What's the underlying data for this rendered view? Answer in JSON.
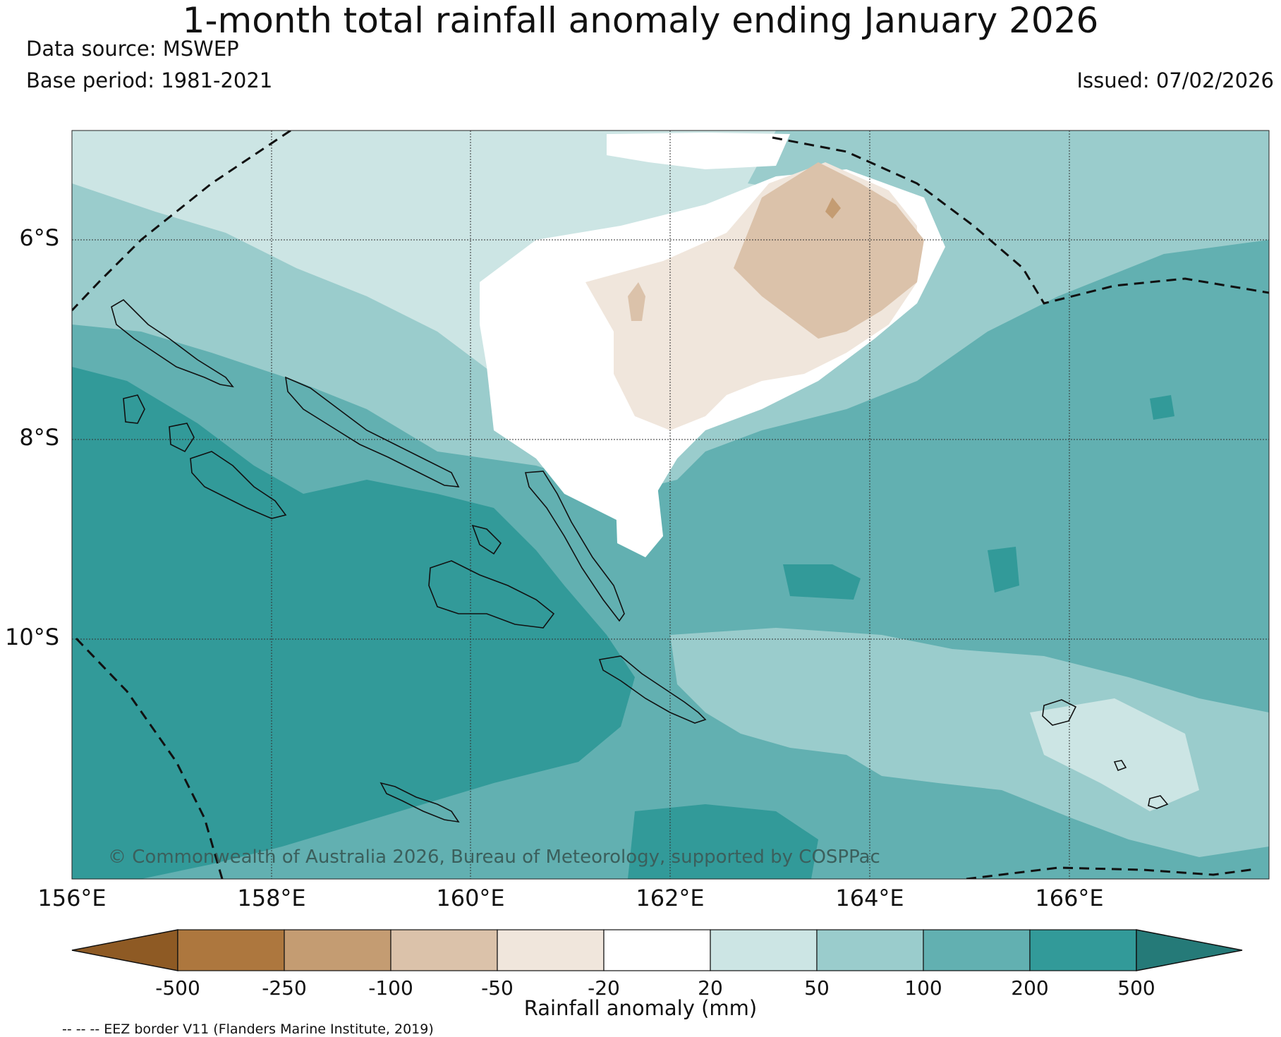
{
  "header": {
    "title": "1-month total rainfall anomaly ending January 2026",
    "data_source": "Data source: MSWEP",
    "base_period": "Base period: 1981-2021",
    "issued": "Issued: 07/02/2026"
  },
  "map": {
    "latitude_labels": [
      "6°S",
      "8°S",
      "10°S"
    ],
    "longitude_labels": [
      "156°E",
      "158°E",
      "160°E",
      "162°E",
      "164°E",
      "166°E"
    ],
    "copyright": "© Commonwealth of Australia 2026, Bureau of Meteorology, supported by COSPPac",
    "extent": {
      "lon_min": 156,
      "lon_max": 168,
      "lat_min": -12.3,
      "lat_max": -4.8
    }
  },
  "colorbar": {
    "ticks": [
      "-500",
      "-250",
      "-100",
      "-50",
      "-20",
      "20",
      "50",
      "100",
      "200",
      "500"
    ],
    "colors": [
      "#8e5a24",
      "#ad773e",
      "#c49c72",
      "#dbc2aa",
      "#f0e6dc",
      "#ffffff",
      "#cce5e4",
      "#9acccc",
      "#62b0b1",
      "#329a99",
      "#257a78"
    ],
    "label": "Rainfall anomaly (mm)"
  },
  "legend": {
    "eez_note": "-- -- -- EEZ border V11 (Flanders Marine Institute, 2019)"
  }
}
